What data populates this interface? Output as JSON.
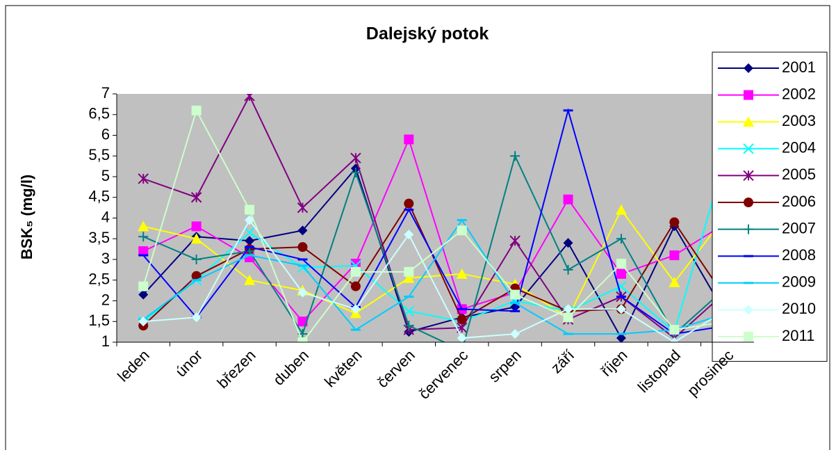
{
  "chart_data": {
    "type": "line",
    "title": "Dalejský potok",
    "y_label": "BSK₅ (mg/l)",
    "categories": [
      "leden",
      "únor",
      "březen",
      "duben",
      "květen",
      "červen",
      "červenec",
      "srpen",
      "září",
      "říjen",
      "listopad",
      "prosinec"
    ],
    "ylim": [
      1,
      7
    ],
    "yticks": [
      1,
      {
        "value": 1.5,
        "label": "1,5"
      },
      2,
      {
        "value": 2.5,
        "label": "2,5"
      },
      3,
      {
        "value": 3.5,
        "label": "3,5"
      },
      4,
      {
        "value": 4.5,
        "label": "4,5"
      },
      5,
      {
        "value": 5.5,
        "label": "5,5"
      },
      6,
      {
        "value": 6.5,
        "label": "6,5"
      },
      7
    ],
    "legend": "right",
    "series": [
      {
        "name": "2001",
        "color": "#000080",
        "marker": "diamond",
        "values": [
          2.15,
          3.55,
          3.45,
          3.7,
          5.2,
          1.25,
          1.6,
          1.85,
          3.4,
          1.1,
          3.8,
          1.6
        ]
      },
      {
        "name": "2002",
        "color": "#ff00ff",
        "marker": "square",
        "values": [
          3.2,
          3.8,
          3.05,
          1.5,
          2.9,
          5.9,
          1.8,
          2.2,
          4.45,
          2.65,
          3.1,
          3.9
        ]
      },
      {
        "name": "2003",
        "color": "#ffff00",
        "marker": "triangle",
        "values": [
          3.8,
          3.5,
          2.5,
          2.25,
          1.7,
          2.55,
          2.65,
          2.4,
          1.6,
          4.2,
          2.45,
          4.1
        ]
      },
      {
        "name": "2004",
        "color": "#00ffff",
        "marker": "x",
        "values": [
          1.5,
          2.5,
          3.65,
          2.8,
          2.85,
          1.75,
          1.5,
          2.0,
          1.75,
          2.35,
          1.25,
          5.65
        ]
      },
      {
        "name": "2005",
        "color": "#800080",
        "marker": "star",
        "values": [
          4.95,
          4.5,
          6.95,
          4.25,
          5.45,
          1.3,
          1.35,
          3.45,
          1.55,
          2.1,
          1.1,
          2.25
        ]
      },
      {
        "name": "2006",
        "color": "#800000",
        "marker": "circle",
        "values": [
          1.4,
          2.6,
          3.25,
          3.3,
          2.35,
          4.35,
          1.55,
          2.3,
          1.75,
          1.8,
          3.9,
          2.0
        ]
      },
      {
        "name": "2007",
        "color": "#008080",
        "marker": "plus",
        "values": [
          3.55,
          3.0,
          3.2,
          1.2,
          5.1,
          1.4,
          0.8,
          5.5,
          2.75,
          3.5,
          1.2,
          2.35
        ]
      },
      {
        "name": "2008",
        "color": "#0000ff",
        "marker": "dash",
        "values": [
          3.1,
          1.6,
          3.3,
          3.0,
          1.85,
          4.2,
          1.8,
          1.75,
          6.6,
          2.1,
          1.2,
          1.4
        ]
      },
      {
        "name": "2009",
        "color": "#00ccff",
        "marker": "dash",
        "values": [
          1.55,
          2.5,
          3.1,
          2.85,
          1.3,
          2.1,
          3.95,
          1.95,
          1.2,
          1.2,
          1.3,
          1.7
        ]
      },
      {
        "name": "2010",
        "color": "#ccffff",
        "marker": "diamond",
        "values": [
          1.5,
          1.6,
          3.95,
          2.2,
          1.8,
          3.6,
          1.1,
          1.2,
          1.8,
          1.8,
          1.0,
          1.8
        ]
      },
      {
        "name": "2011",
        "color": "#ccffcc",
        "marker": "square",
        "values": [
          2.35,
          6.6,
          4.2,
          1.0,
          2.7,
          2.7,
          3.7,
          2.15,
          1.6,
          2.9,
          1.3,
          1.5
        ]
      }
    ]
  }
}
